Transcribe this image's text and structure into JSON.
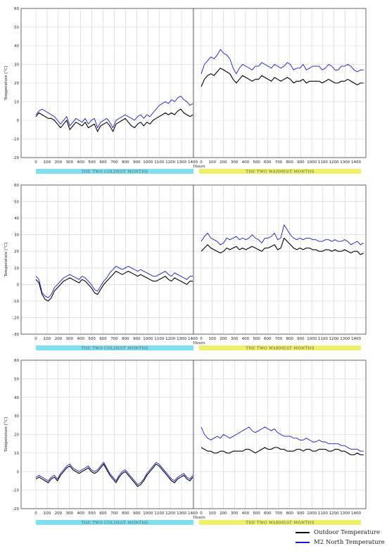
{
  "chart_data": [
    {
      "type": "line",
      "xlabel": "Hours",
      "ylabel": "Temperature [°C]",
      "ylim": [
        -20,
        60
      ],
      "yticks": [
        -20,
        -10,
        0,
        10,
        20,
        30,
        40,
        50,
        60
      ],
      "xticks": [
        0,
        100,
        200,
        300,
        400,
        500,
        600,
        700,
        800,
        900,
        1000,
        1100,
        1200,
        1300,
        1400
      ],
      "grid": true,
      "segments": [
        {
          "label": "THE TWO COLDEST MONTHS",
          "band_color": "#7fe0ef"
        },
        {
          "label": "THE TWO WARMEST MONTHS",
          "band_color": "#eef06a"
        }
      ],
      "series": [
        {
          "name": "Outdoor Temperature",
          "color": "#000000",
          "cold": [
            2,
            4,
            3,
            2,
            1,
            1,
            0,
            -2,
            -4,
            -2,
            0,
            -5,
            -3,
            -1,
            -2,
            -3,
            -1,
            -4,
            -3,
            -2,
            -6,
            -3,
            -2,
            -1,
            -3,
            -6,
            -2,
            -1,
            0,
            1,
            -1,
            -3,
            -4,
            -2,
            -1,
            -3,
            -1,
            -2,
            0,
            1,
            2,
            3,
            4,
            3,
            4,
            3,
            5,
            6,
            4,
            3,
            2,
            3
          ],
          "warm": [
            18,
            22,
            24,
            25,
            24,
            26,
            28,
            27,
            26,
            25,
            22,
            20,
            22,
            24,
            23,
            22,
            21,
            22,
            22,
            24,
            23,
            22,
            21,
            23,
            22,
            21,
            22,
            23,
            22,
            20,
            21,
            21,
            22,
            20,
            21,
            21,
            21,
            21,
            20,
            21,
            22,
            21,
            20,
            20,
            21,
            21,
            22,
            21,
            20,
            19,
            20,
            20
          ]
        },
        {
          "name": "M2 North Temperature",
          "color": "#1a1acc",
          "cold": [
            3,
            5,
            6,
            5,
            4,
            3,
            2,
            0,
            -2,
            0,
            2,
            -3,
            -1,
            1,
            0,
            -1,
            1,
            -2,
            0,
            1,
            -4,
            -1,
            0,
            1,
            -1,
            -4,
            0,
            1,
            2,
            3,
            2,
            1,
            0,
            2,
            3,
            1,
            3,
            2,
            4,
            6,
            8,
            9,
            10,
            9,
            11,
            10,
            12,
            13,
            11,
            10,
            8,
            9
          ],
          "warm": [
            25,
            30,
            32,
            34,
            33,
            35,
            38,
            36,
            35,
            33,
            28,
            25,
            28,
            30,
            29,
            28,
            27,
            29,
            29,
            31,
            30,
            29,
            28,
            30,
            29,
            28,
            29,
            31,
            30,
            27,
            28,
            28,
            30,
            27,
            28,
            29,
            29,
            29,
            27,
            28,
            30,
            29,
            27,
            27,
            29,
            29,
            30,
            29,
            27,
            26,
            27,
            27
          ]
        }
      ]
    },
    {
      "type": "line",
      "xlabel": "Hours",
      "ylabel": "Temperature [°C]",
      "ylim": [
        -30,
        60
      ],
      "yticks": [
        -30,
        -20,
        -10,
        0,
        10,
        20,
        30,
        40,
        50,
        60
      ],
      "xticks": [
        0,
        100,
        200,
        300,
        400,
        500,
        600,
        700,
        800,
        900,
        1000,
        1100,
        1200,
        1300,
        1400
      ],
      "grid": true,
      "segments": [
        {
          "label": "THE TWO COLDEST MONTHS",
          "band_color": "#7fe0ef"
        },
        {
          "label": "THE TWO WARMEST MONTHS",
          "band_color": "#eef06a"
        }
      ],
      "series": [
        {
          "name": "Outdoor Temperature",
          "color": "#000000",
          "cold": [
            3,
            1,
            -6,
            -9,
            -10,
            -8,
            -4,
            -2,
            0,
            2,
            3,
            4,
            3,
            2,
            1,
            3,
            2,
            0,
            -2,
            -5,
            -6,
            -3,
            0,
            2,
            4,
            6,
            8,
            7,
            6,
            7,
            8,
            7,
            6,
            5,
            6,
            5,
            4,
            3,
            2,
            2,
            3,
            4,
            5,
            3,
            2,
            4,
            3,
            2,
            1,
            0,
            2,
            2
          ],
          "warm": [
            20,
            22,
            24,
            22,
            21,
            20,
            19,
            20,
            22,
            21,
            22,
            23,
            21,
            22,
            21,
            22,
            23,
            22,
            21,
            20,
            22,
            22,
            23,
            24,
            21,
            22,
            28,
            26,
            24,
            22,
            21,
            22,
            21,
            22,
            22,
            21,
            21,
            20,
            20,
            21,
            21,
            20,
            21,
            20,
            20,
            21,
            20,
            19,
            20,
            20,
            18,
            19
          ]
        },
        {
          "name": "M2 North Temperature",
          "color": "#1a1acc",
          "cold": [
            5,
            3,
            -5,
            -7,
            -8,
            -6,
            -2,
            0,
            2,
            4,
            5,
            6,
            5,
            4,
            3,
            5,
            4,
            2,
            0,
            -3,
            -4,
            -1,
            2,
            4,
            7,
            9,
            11,
            10,
            9,
            10,
            11,
            10,
            9,
            8,
            9,
            8,
            7,
            6,
            5,
            5,
            6,
            7,
            8,
            6,
            5,
            7,
            6,
            5,
            4,
            3,
            5,
            5
          ],
          "warm": [
            26,
            29,
            31,
            28,
            27,
            26,
            24,
            25,
            28,
            27,
            28,
            29,
            27,
            28,
            27,
            28,
            30,
            28,
            27,
            25,
            28,
            28,
            29,
            31,
            27,
            28,
            36,
            33,
            30,
            28,
            27,
            28,
            27,
            28,
            28,
            27,
            27,
            26,
            26,
            27,
            27,
            26,
            27,
            26,
            26,
            27,
            26,
            24,
            25,
            26,
            24,
            25
          ]
        }
      ]
    },
    {
      "type": "line",
      "xlabel": "Hours",
      "ylabel": "Temperature [°C]",
      "ylim": [
        -20,
        60
      ],
      "yticks": [
        -20,
        -10,
        0,
        10,
        20,
        30,
        40,
        50,
        60
      ],
      "xticks": [
        0,
        100,
        200,
        300,
        400,
        500,
        600,
        700,
        800,
        900,
        1000,
        1100,
        1200,
        1300,
        1400
      ],
      "grid": true,
      "segments": [
        {
          "label": "THE TWO COLDEST MONTHS",
          "band_color": "#7fe0ef"
        },
        {
          "label": "THE TWO WARMEST MONTHS",
          "band_color": "#eef06a"
        }
      ],
      "series": [
        {
          "name": "Outdoor Temperature",
          "color": "#000000",
          "cold": [
            -4,
            -3,
            -4,
            -5,
            -6,
            -4,
            -3,
            -5,
            -2,
            0,
            2,
            3,
            1,
            0,
            -1,
            0,
            1,
            2,
            0,
            -1,
            0,
            2,
            4,
            1,
            -2,
            -4,
            -6,
            -3,
            -1,
            0,
            -2,
            -4,
            -6,
            -8,
            -7,
            -5,
            -2,
            0,
            2,
            4,
            3,
            1,
            -1,
            -3,
            -5,
            -6,
            -4,
            -3,
            -2,
            -4,
            -5,
            -3
          ],
          "warm": [
            13,
            12,
            11,
            11,
            10,
            10,
            11,
            11,
            10,
            10,
            11,
            11,
            11,
            11,
            12,
            12,
            11,
            10,
            11,
            12,
            13,
            12,
            12,
            13,
            13,
            12,
            12,
            11,
            11,
            11,
            12,
            12,
            11,
            12,
            12,
            11,
            11,
            12,
            12,
            12,
            11,
            11,
            12,
            12,
            11,
            11,
            10,
            9,
            9,
            10,
            9,
            9
          ]
        },
        {
          "name": "M2 North Temperature",
          "color": "#1a1acc",
          "cold": [
            -3,
            -2,
            -3,
            -4,
            -5,
            -3,
            -2,
            -4,
            -1,
            1,
            3,
            4,
            2,
            1,
            0,
            1,
            2,
            3,
            1,
            0,
            1,
            3,
            5,
            2,
            -1,
            -3,
            -5,
            -2,
            0,
            1,
            -1,
            -3,
            -5,
            -7,
            -6,
            -4,
            -1,
            1,
            3,
            5,
            4,
            2,
            0,
            -2,
            -4,
            -5,
            -3,
            -2,
            -1,
            -3,
            -4,
            -2
          ],
          "warm": [
            24,
            20,
            18,
            17,
            18,
            19,
            18,
            20,
            19,
            18,
            19,
            20,
            21,
            22,
            23,
            24,
            22,
            21,
            22,
            23,
            24,
            23,
            22,
            23,
            21,
            20,
            19,
            19,
            19,
            18,
            18,
            17,
            17,
            18,
            17,
            16,
            16,
            17,
            16,
            16,
            15,
            15,
            15,
            15,
            14,
            14,
            13,
            12,
            12,
            12,
            11,
            11
          ]
        }
      ]
    }
  ],
  "legend": {
    "items": [
      {
        "label": "Outdoor Temperature",
        "color": "#000000"
      },
      {
        "label": "M2 North Temperature",
        "color": "#1a1acc"
      }
    ]
  }
}
